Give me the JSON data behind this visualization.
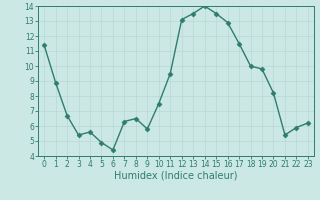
{
  "x": [
    0,
    1,
    2,
    3,
    4,
    5,
    6,
    7,
    8,
    9,
    10,
    11,
    12,
    13,
    14,
    15,
    16,
    17,
    18,
    19,
    20,
    21,
    22,
    23
  ],
  "y": [
    11.4,
    8.9,
    6.7,
    5.4,
    5.6,
    4.9,
    4.4,
    6.3,
    6.5,
    5.8,
    7.5,
    9.5,
    13.1,
    13.5,
    14.0,
    13.5,
    12.9,
    11.5,
    10.0,
    9.8,
    8.2,
    5.4,
    5.9,
    6.2
  ],
  "line_color": "#2e7d6e",
  "marker": "D",
  "marker_size": 2.5,
  "linewidth": 1.0,
  "xlabel": "Humidex (Indice chaleur)",
  "xlim": [
    -0.5,
    23.5
  ],
  "ylim": [
    4,
    14
  ],
  "yticks": [
    4,
    5,
    6,
    7,
    8,
    9,
    10,
    11,
    12,
    13,
    14
  ],
  "xticks": [
    0,
    1,
    2,
    3,
    4,
    5,
    6,
    7,
    8,
    9,
    10,
    11,
    12,
    13,
    14,
    15,
    16,
    17,
    18,
    19,
    20,
    21,
    22,
    23
  ],
  "bg_color": "#cce8e4",
  "grid_color": "#b8d8d4",
  "tick_label_fontsize": 5.5,
  "xlabel_fontsize": 7.0
}
